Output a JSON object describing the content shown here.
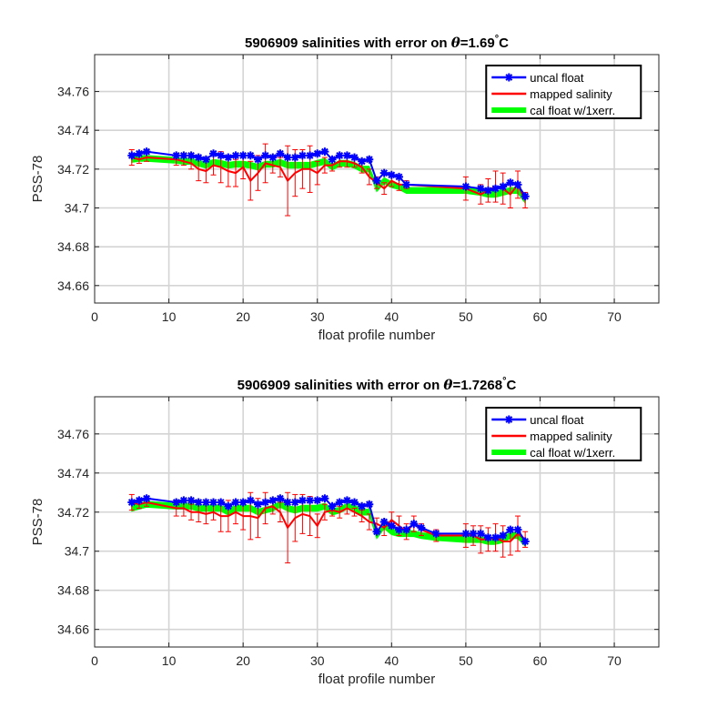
{
  "chart_data": [
    {
      "type": "line",
      "title_prefix": "5906909 salinities with error on ",
      "title_theta": "θ",
      "title_suffix": "=1.69",
      "title_unit": "C",
      "title_degree": "°",
      "xlabel": "float profile number",
      "ylabel": "PSS-78",
      "xlim": [
        0,
        76
      ],
      "ylim": [
        34.651,
        34.779
      ],
      "xticks": [
        0,
        10,
        20,
        30,
        40,
        50,
        60,
        70
      ],
      "xtick_labels": [
        "0",
        "10",
        "20",
        "30",
        "40",
        "50",
        "60",
        "70"
      ],
      "yticks": [
        34.66,
        34.68,
        34.7,
        34.72,
        34.74,
        34.76
      ],
      "ytick_labels": [
        "34.66",
        "34.68",
        "34.7",
        "34.72",
        "34.74",
        "34.76"
      ],
      "grid": true,
      "legend_position": "top-right",
      "series": [
        {
          "name": "uncal float",
          "color": "#0000ff",
          "marker": "star",
          "x": [
            5,
            6,
            7,
            11,
            12,
            13,
            14,
            15,
            16,
            17,
            18,
            19,
            20,
            21,
            22,
            23,
            24,
            25,
            26,
            27,
            28,
            29,
            30,
            31,
            32,
            33,
            34,
            35,
            36,
            37,
            38,
            39,
            40,
            41,
            42,
            50,
            52,
            53,
            54,
            55,
            56,
            57,
            58
          ],
          "values": [
            34.727,
            34.728,
            34.729,
            34.727,
            34.727,
            34.727,
            34.726,
            34.725,
            34.728,
            34.727,
            34.726,
            34.727,
            34.727,
            34.727,
            34.725,
            34.727,
            34.726,
            34.728,
            34.726,
            34.726,
            34.727,
            34.727,
            34.728,
            34.729,
            34.725,
            34.727,
            34.727,
            34.726,
            34.724,
            34.725,
            34.714,
            34.718,
            34.717,
            34.716,
            34.712,
            34.711,
            34.71,
            34.709,
            34.71,
            34.711,
            34.713,
            34.712,
            34.706
          ]
        },
        {
          "name": "mapped salinity",
          "color": "#ff0000",
          "x": [
            5,
            6,
            7,
            11,
            12,
            13,
            14,
            15,
            16,
            17,
            18,
            19,
            20,
            21,
            22,
            23,
            24,
            25,
            26,
            27,
            28,
            29,
            30,
            31,
            32,
            33,
            34,
            35,
            36,
            37,
            38,
            39,
            40,
            41,
            42,
            50,
            52,
            53,
            54,
            55,
            56,
            57,
            58
          ],
          "values": [
            34.726,
            34.725,
            34.726,
            34.725,
            34.724,
            34.723,
            34.72,
            34.719,
            34.722,
            34.721,
            34.719,
            34.718,
            34.721,
            34.714,
            34.718,
            34.723,
            34.722,
            34.721,
            34.714,
            34.718,
            34.72,
            34.72,
            34.718,
            34.722,
            34.722,
            34.724,
            34.724,
            34.723,
            34.721,
            34.716,
            34.713,
            34.71,
            34.714,
            34.712,
            34.712,
            34.71,
            34.707,
            34.709,
            34.711,
            34.71,
            34.707,
            34.712,
            34.704
          ],
          "err": [
            0.004,
            0.002,
            0.002,
            0.003,
            0.002,
            0.003,
            0.006,
            0.006,
            0.005,
            0.008,
            0.008,
            0.007,
            0.006,
            0.01,
            0.009,
            0.01,
            0.004,
            0.005,
            0.018,
            0.012,
            0.01,
            0.012,
            0.006,
            0.004,
            0.003,
            0.003,
            0.003,
            0.002,
            0.003,
            0.004,
            0.003,
            0.003,
            0.003,
            0.003,
            0.002,
            0.006,
            0.005,
            0.006,
            0.008,
            0.008,
            0.007,
            0.007,
            0.004
          ]
        },
        {
          "name": "cal float w/1xerr.",
          "color": "#00ff00",
          "x": [
            5,
            6,
            7,
            11,
            12,
            13,
            14,
            15,
            16,
            17,
            18,
            19,
            20,
            21,
            22,
            23,
            24,
            25,
            26,
            27,
            28,
            29,
            30,
            31,
            32,
            33,
            34,
            35,
            36,
            37,
            38,
            39,
            40,
            41,
            42,
            50,
            52,
            53,
            54,
            55,
            56,
            57,
            58
          ],
          "values": [
            34.725,
            34.7255,
            34.7255,
            34.7245,
            34.724,
            34.724,
            34.723,
            34.722,
            34.7235,
            34.723,
            34.722,
            34.7225,
            34.7225,
            34.722,
            34.721,
            34.7225,
            34.7225,
            34.7235,
            34.722,
            34.722,
            34.722,
            34.722,
            34.723,
            34.724,
            34.721,
            34.723,
            34.723,
            34.722,
            34.72,
            34.72,
            34.71,
            34.714,
            34.712,
            34.711,
            34.709,
            34.709,
            34.708,
            34.707,
            34.707,
            34.708,
            34.709,
            34.709,
            34.704
          ],
          "band_halfwidth": 0.0015
        }
      ]
    },
    {
      "type": "line",
      "title_prefix": "5906909 salinities with error on ",
      "title_theta": "θ",
      "title_suffix": "=1.7268",
      "title_unit": "C",
      "title_degree": "°",
      "xlabel": "float profile number",
      "ylabel": "PSS-78",
      "xlim": [
        0,
        76
      ],
      "ylim": [
        34.651,
        34.779
      ],
      "xticks": [
        0,
        10,
        20,
        30,
        40,
        50,
        60,
        70
      ],
      "xtick_labels": [
        "0",
        "10",
        "20",
        "30",
        "40",
        "50",
        "60",
        "70"
      ],
      "yticks": [
        34.66,
        34.68,
        34.7,
        34.72,
        34.74,
        34.76
      ],
      "ytick_labels": [
        "34.66",
        "34.68",
        "34.7",
        "34.72",
        "34.74",
        "34.76"
      ],
      "grid": true,
      "legend_position": "top-right",
      "series": [
        {
          "name": "uncal float",
          "color": "#0000ff",
          "marker": "star",
          "x": [
            5,
            6,
            7,
            11,
            12,
            13,
            14,
            15,
            16,
            17,
            18,
            19,
            20,
            21,
            22,
            23,
            24,
            25,
            26,
            27,
            28,
            29,
            30,
            31,
            32,
            33,
            34,
            35,
            36,
            37,
            38,
            39,
            40,
            41,
            42,
            43,
            44,
            46,
            50,
            51,
            52,
            53,
            54,
            55,
            56,
            57,
            58
          ],
          "values": [
            34.725,
            34.726,
            34.727,
            34.725,
            34.726,
            34.726,
            34.725,
            34.725,
            34.725,
            34.725,
            34.723,
            34.725,
            34.725,
            34.726,
            34.724,
            34.725,
            34.726,
            34.727,
            34.725,
            34.725,
            34.726,
            34.726,
            34.726,
            34.727,
            34.723,
            34.725,
            34.726,
            34.725,
            34.723,
            34.724,
            34.71,
            34.715,
            34.713,
            34.711,
            34.711,
            34.714,
            34.712,
            34.709,
            34.709,
            34.709,
            34.709,
            34.707,
            34.707,
            34.708,
            34.711,
            34.711,
            34.705
          ]
        },
        {
          "name": "mapped salinity",
          "color": "#ff0000",
          "x": [
            5,
            6,
            7,
            11,
            12,
            13,
            14,
            15,
            16,
            17,
            18,
            19,
            20,
            21,
            22,
            23,
            24,
            25,
            26,
            27,
            28,
            29,
            30,
            31,
            32,
            33,
            34,
            35,
            36,
            37,
            38,
            39,
            40,
            41,
            42,
            43,
            44,
            46,
            50,
            51,
            52,
            53,
            54,
            55,
            56,
            57,
            58
          ],
          "values": [
            34.725,
            34.724,
            34.725,
            34.722,
            34.722,
            34.72,
            34.72,
            34.719,
            34.72,
            34.718,
            34.718,
            34.72,
            34.718,
            34.718,
            34.717,
            34.722,
            34.723,
            34.72,
            34.712,
            34.717,
            34.719,
            34.718,
            34.713,
            34.72,
            34.721,
            34.72,
            34.722,
            34.72,
            34.718,
            34.715,
            34.714,
            34.712,
            34.716,
            34.713,
            34.71,
            34.714,
            34.711,
            34.708,
            34.708,
            34.708,
            34.706,
            34.706,
            34.707,
            34.705,
            34.705,
            34.709,
            34.706
          ],
          "err": [
            0.004,
            0.002,
            0.002,
            0.004,
            0.004,
            0.004,
            0.005,
            0.005,
            0.004,
            0.008,
            0.008,
            0.006,
            0.007,
            0.012,
            0.01,
            0.008,
            0.004,
            0.005,
            0.018,
            0.012,
            0.01,
            0.01,
            0.006,
            0.004,
            0.003,
            0.003,
            0.003,
            0.002,
            0.003,
            0.004,
            0.003,
            0.004,
            0.004,
            0.005,
            0.004,
            0.004,
            0.003,
            0.003,
            0.006,
            0.005,
            0.007,
            0.006,
            0.007,
            0.008,
            0.007,
            0.009,
            0.004
          ]
        },
        {
          "name": "cal float w/1xerr.",
          "color": "#00ff00",
          "x": [
            5,
            6,
            7,
            11,
            12,
            13,
            14,
            15,
            16,
            17,
            18,
            19,
            20,
            21,
            22,
            23,
            24,
            25,
            26,
            27,
            28,
            29,
            30,
            31,
            32,
            33,
            34,
            35,
            36,
            37,
            38,
            39,
            40,
            41,
            42,
            43,
            44,
            46,
            50,
            51,
            52,
            53,
            54,
            55,
            56,
            57,
            58
          ],
          "values": [
            34.722,
            34.723,
            34.724,
            34.723,
            34.723,
            34.723,
            34.722,
            34.722,
            34.722,
            34.722,
            34.72,
            34.722,
            34.722,
            34.722,
            34.72,
            34.721,
            34.722,
            34.724,
            34.722,
            34.721,
            34.722,
            34.722,
            34.722,
            34.723,
            34.72,
            34.721,
            34.723,
            34.722,
            34.72,
            34.72,
            34.708,
            34.713,
            34.71,
            34.709,
            34.709,
            34.709,
            34.708,
            34.707,
            34.706,
            34.706,
            34.706,
            34.705,
            34.705,
            34.706,
            34.708,
            34.708,
            34.704
          ],
          "band_halfwidth": 0.0015
        }
      ]
    }
  ]
}
